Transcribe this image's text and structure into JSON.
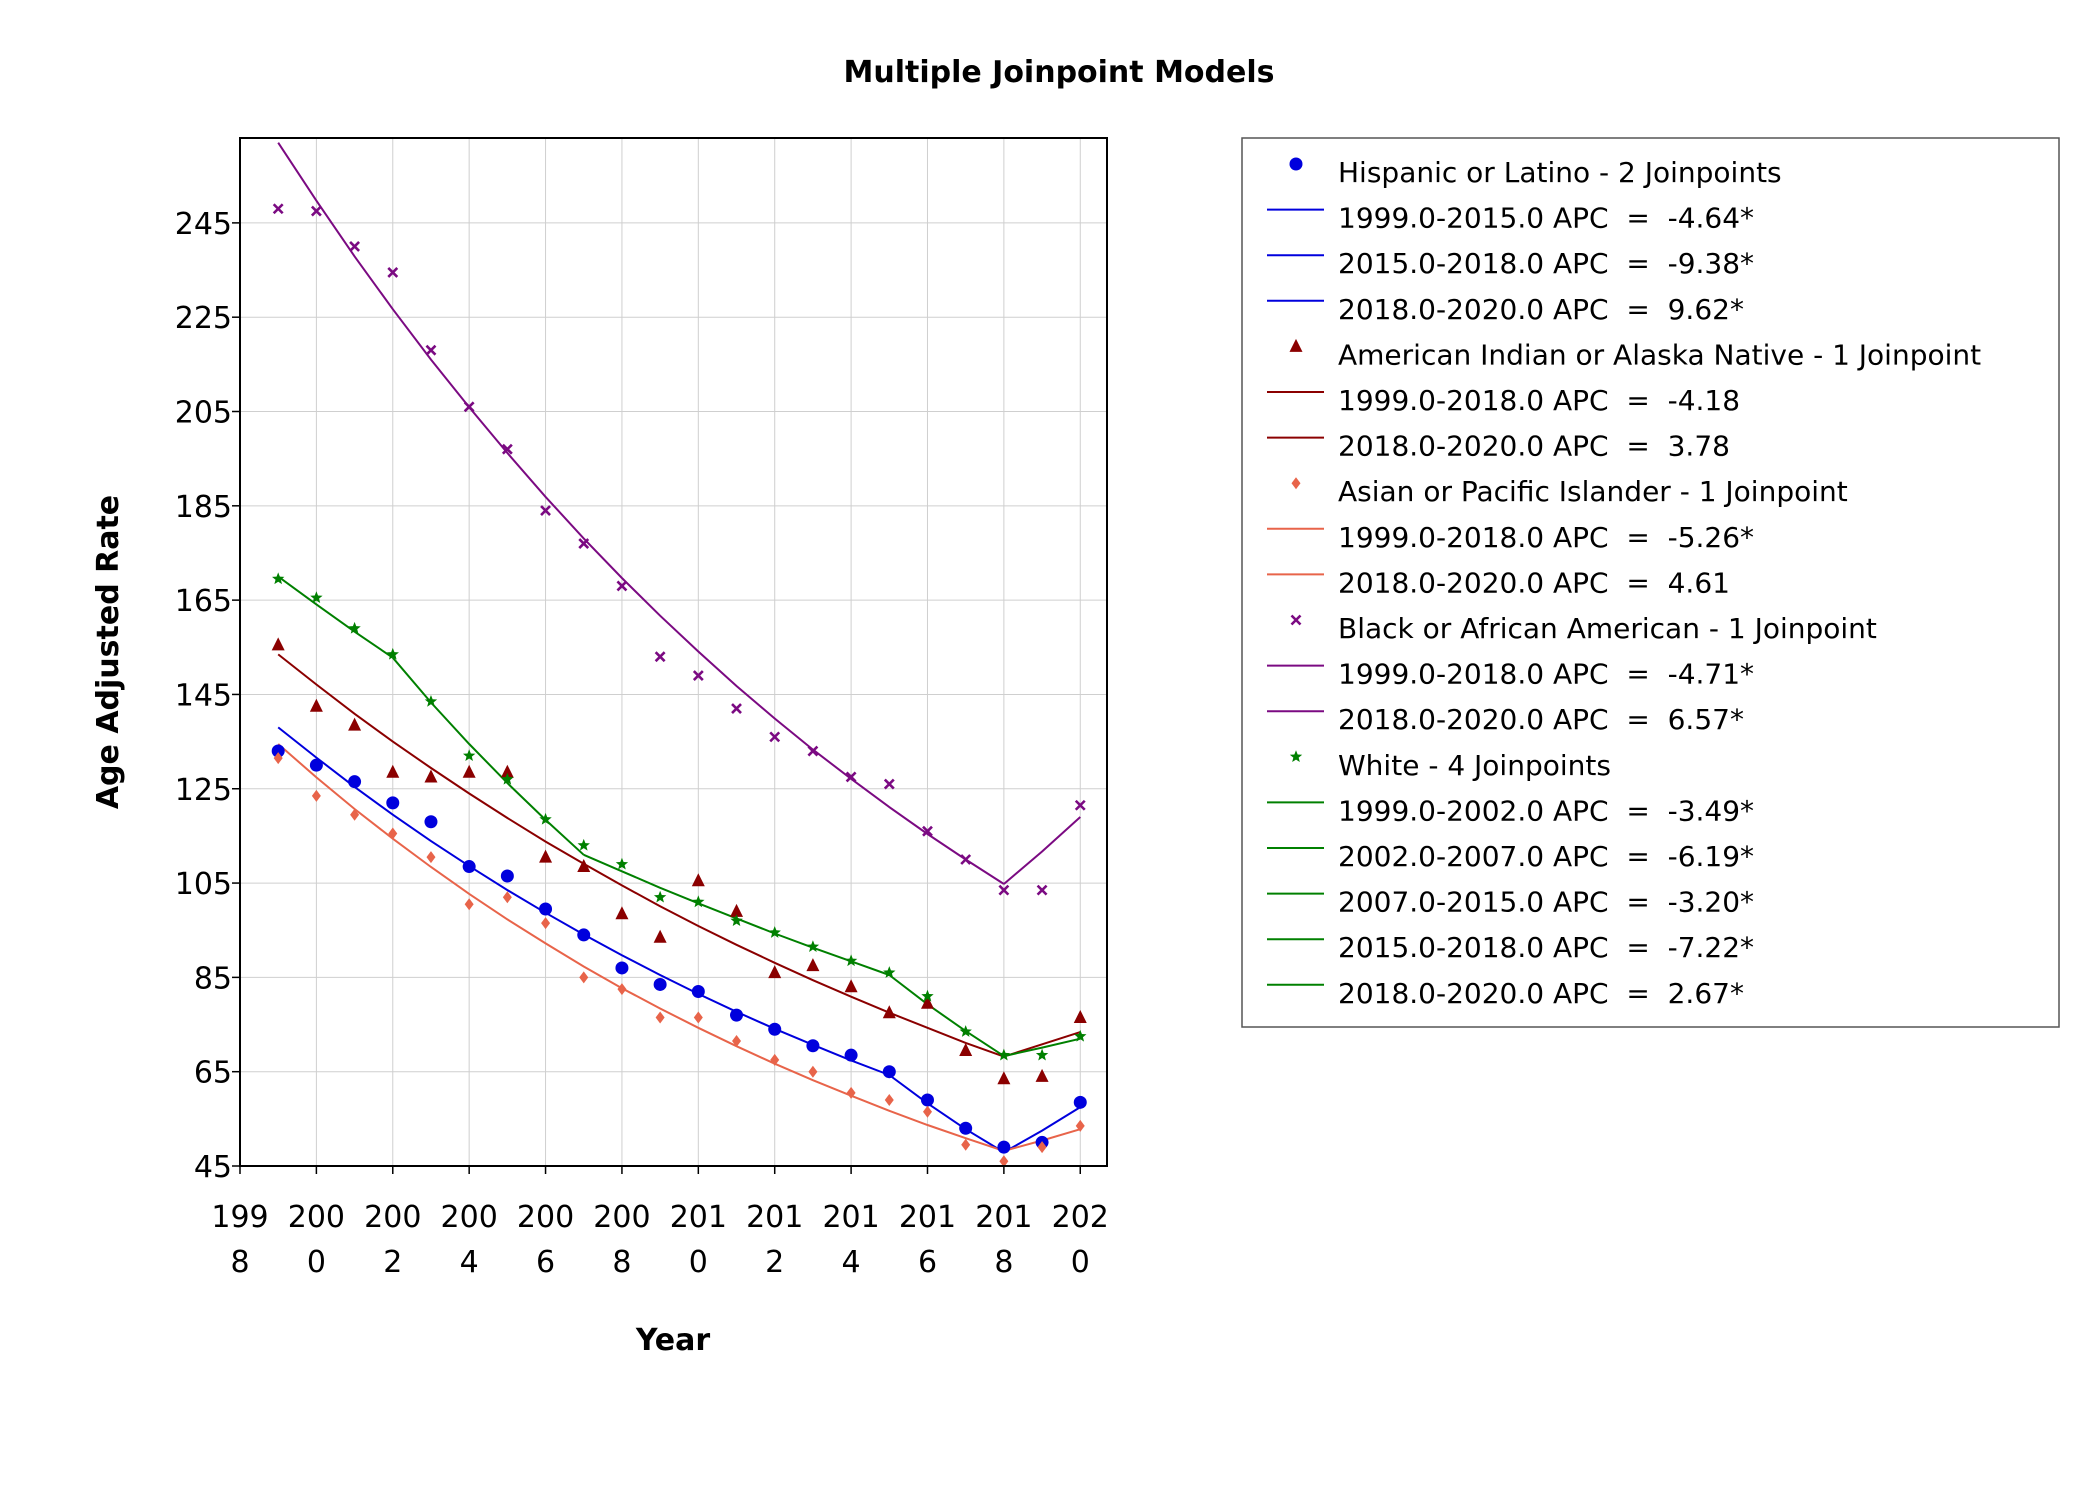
{
  "chart_data": {
    "type": "line",
    "title": "Multiple Joinpoint Models",
    "xlabel": "Year",
    "ylabel": "Age Adjusted Rate",
    "xlim": [
      1998,
      2020.7
    ],
    "ylim": [
      45,
      263
    ],
    "x_ticks": [
      {
        "value": 1998,
        "line1": "199",
        "line2": "8"
      },
      {
        "value": 2000,
        "line1": "200",
        "line2": "0"
      },
      {
        "value": 2002,
        "line1": "200",
        "line2": "2"
      },
      {
        "value": 2004,
        "line1": "200",
        "line2": "4"
      },
      {
        "value": 2006,
        "line1": "200",
        "line2": "6"
      },
      {
        "value": 2008,
        "line1": "200",
        "line2": "8"
      },
      {
        "value": 2010,
        "line1": "201",
        "line2": "0"
      },
      {
        "value": 2012,
        "line1": "201",
        "line2": "2"
      },
      {
        "value": 2014,
        "line1": "201",
        "line2": "4"
      },
      {
        "value": 2016,
        "line1": "201",
        "line2": "6"
      },
      {
        "value": 2018,
        "line1": "201",
        "line2": "8"
      },
      {
        "value": 2020,
        "line1": "202",
        "line2": "0"
      }
    ],
    "y_ticks": [
      45,
      65,
      85,
      105,
      125,
      145,
      165,
      185,
      205,
      225,
      245
    ],
    "grid": true,
    "legend_placement": "right",
    "x": [
      1999,
      2000,
      2001,
      2002,
      2003,
      2004,
      2005,
      2006,
      2007,
      2008,
      2009,
      2010,
      2011,
      2012,
      2013,
      2014,
      2015,
      2016,
      2017,
      2018,
      2019,
      2020
    ],
    "series": [
      {
        "name": "Hispanic or Latino - 2 Joinpoints",
        "color": "#0000dd",
        "marker": "circle",
        "points": [
          133,
          130,
          126.5,
          122,
          118,
          108.5,
          106.5,
          99.5,
          94,
          87,
          83.5,
          82,
          77,
          74,
          70.5,
          68.5,
          65,
          59,
          53,
          49,
          50,
          58.5
        ],
        "fit_segments": [
          {
            "label": "1999.0-2015.0 APC  =  -4.64*",
            "x": [
              1999,
              2000,
              2001,
              2002,
              2003,
              2004,
              2005,
              2006,
              2007,
              2008,
              2009,
              2010,
              2011,
              2012,
              2013,
              2014,
              2015
            ],
            "y": [
              138,
              131.6,
              125.4,
              119.5,
              113.9,
              108.6,
              103.5,
              98.7,
              94.1,
              89.7,
              85.5,
              81.5,
              77.7,
              74.1,
              70.7,
              67.4,
              64.3
            ]
          },
          {
            "label": "2015.0-2018.0 APC  =  -9.38*",
            "x": [
              2015,
              2016,
              2017,
              2018
            ],
            "y": [
              64.3,
              58.3,
              52.8,
              47.9
            ]
          },
          {
            "label": "2018.0-2020.0 APC  =  9.62*",
            "x": [
              2018,
              2019,
              2020
            ],
            "y": [
              47.9,
              52.5,
              57.5
            ]
          }
        ]
      },
      {
        "name": "American Indian or Alaska Native - 1 Joinpoint",
        "color": "#8b0000",
        "marker": "triangle",
        "points": [
          155.5,
          142.5,
          138.5,
          128.5,
          127.5,
          128.5,
          128.5,
          110.5,
          108.5,
          98.5,
          93.5,
          105.5,
          99,
          86,
          87.5,
          83,
          77.5,
          79.5,
          69.5,
          63.5,
          64,
          76.5
        ],
        "fit_segments": [
          {
            "label": "1999.0-2018.0 APC  =  -4.18",
            "x": [
              1999,
              2000,
              2001,
              2002,
              2003,
              2004,
              2005,
              2006,
              2007,
              2008,
              2009,
              2010,
              2011,
              2012,
              2013,
              2014,
              2015,
              2016,
              2017,
              2018
            ],
            "y": [
              153.5,
              147.1,
              140.9,
              135.0,
              129.4,
              124.0,
              118.8,
              113.8,
              109.1,
              104.5,
              100.1,
              95.9,
              91.9,
              88.1,
              84.4,
              80.9,
              77.5,
              74.3,
              71.1,
              68.2
            ]
          },
          {
            "label": "2018.0-2020.0 APC  =  3.78",
            "x": [
              2018,
              2019,
              2020
            ],
            "y": [
              68.2,
              70.8,
              73.4
            ]
          }
        ]
      },
      {
        "name": "Asian or Pacific Islander - 1 Joinpoint",
        "color": "#e8644a",
        "marker": "diamond",
        "points": [
          131.5,
          123.5,
          119.5,
          115.5,
          110.5,
          100.5,
          102,
          96.5,
          85,
          82.5,
          76.5,
          76.5,
          71.5,
          67.5,
          65,
          60.5,
          59,
          56.5,
          49.5,
          46,
          49,
          53.5
        ],
        "fit_segments": [
          {
            "label": "1999.0-2018.0 APC  =  -5.26*",
            "x": [
              1999,
              2000,
              2001,
              2002,
              2003,
              2004,
              2005,
              2006,
              2007,
              2008,
              2009,
              2010,
              2011,
              2012,
              2013,
              2014,
              2015,
              2016,
              2017,
              2018
            ],
            "y": [
              134.5,
              127.4,
              120.7,
              114.4,
              108.4,
              102.7,
              97.3,
              92.2,
              87.3,
              82.7,
              78.4,
              74.3,
              70.4,
              66.7,
              63.2,
              59.9,
              56.7,
              53.7,
              50.9,
              48.2
            ]
          },
          {
            "label": "2018.0-2020.0 APC  =  4.61",
            "x": [
              2018,
              2019,
              2020
            ],
            "y": [
              48.2,
              50.4,
              52.8
            ]
          }
        ]
      },
      {
        "name": "Black or African American - 1 Joinpoint",
        "color": "#7b0a82",
        "marker": "x",
        "points": [
          248,
          247.5,
          240,
          234.5,
          218,
          206,
          197,
          184,
          177,
          168,
          153,
          149,
          142,
          136,
          133,
          127.5,
          126,
          116,
          110,
          103.5,
          103.5,
          121.5
        ],
        "fit_segments": [
          {
            "label": "1999.0-2018.0 APC  =  -4.71*",
            "x": [
              1999,
              2000,
              2001,
              2002,
              2003,
              2004,
              2005,
              2006,
              2007,
              2008,
              2009,
              2010,
              2011,
              2012,
              2013,
              2014,
              2015,
              2016,
              2017,
              2018
            ],
            "y": [
              262,
              249.7,
              237.9,
              226.7,
              216.0,
              205.9,
              196.2,
              186.9,
              178.1,
              169.7,
              161.7,
              154.1,
              146.8,
              139.9,
              133.3,
              127.1,
              121.1,
              115.4,
              110.0,
              104.8
            ]
          },
          {
            "label": "2018.0-2020.0 APC  =  6.57*",
            "x": [
              2018,
              2019,
              2020
            ],
            "y": [
              104.8,
              111.7,
              119.0
            ]
          }
        ]
      },
      {
        "name": "White - 4 Joinpoints",
        "color": "#008000",
        "marker": "star",
        "points": [
          169.5,
          165.5,
          159,
          153.5,
          143.5,
          132,
          127,
          118.5,
          113,
          109,
          102,
          101,
          97,
          94.5,
          91.5,
          88.5,
          86,
          81,
          73.5,
          68.5,
          68.5,
          72.5
        ],
        "fit_segments": [
          {
            "label": "1999.0-2002.0 APC  =  -3.49*",
            "x": [
              1999,
              2000,
              2001,
              2002
            ],
            "y": [
              170,
              164.1,
              158.3,
              152.8
            ]
          },
          {
            "label": "2002.0-2007.0 APC  =  -6.19*",
            "x": [
              2002,
              2003,
              2004,
              2005,
              2006,
              2007
            ],
            "y": [
              152.8,
              143.3,
              134.5,
              126.2,
              118.4,
              111.0
            ]
          },
          {
            "label": "2007.0-2015.0 APC  =  -3.20*",
            "x": [
              2007,
              2008,
              2009,
              2010,
              2011,
              2012,
              2013,
              2014,
              2015
            ],
            "y": [
              111.0,
              107.5,
              104.0,
              100.7,
              97.5,
              94.3,
              91.3,
              88.4,
              85.5
            ]
          },
          {
            "label": "2015.0-2018.0 APC  =  -7.22*",
            "x": [
              2015,
              2016,
              2017,
              2018
            ],
            "y": [
              85.5,
              79.3,
              73.6,
              68.3
            ]
          },
          {
            "label": "2018.0-2020.0 APC  =  2.67*",
            "x": [
              2018,
              2019,
              2020
            ],
            "y": [
              68.3,
              70.1,
              72.0
            ]
          }
        ]
      }
    ]
  }
}
